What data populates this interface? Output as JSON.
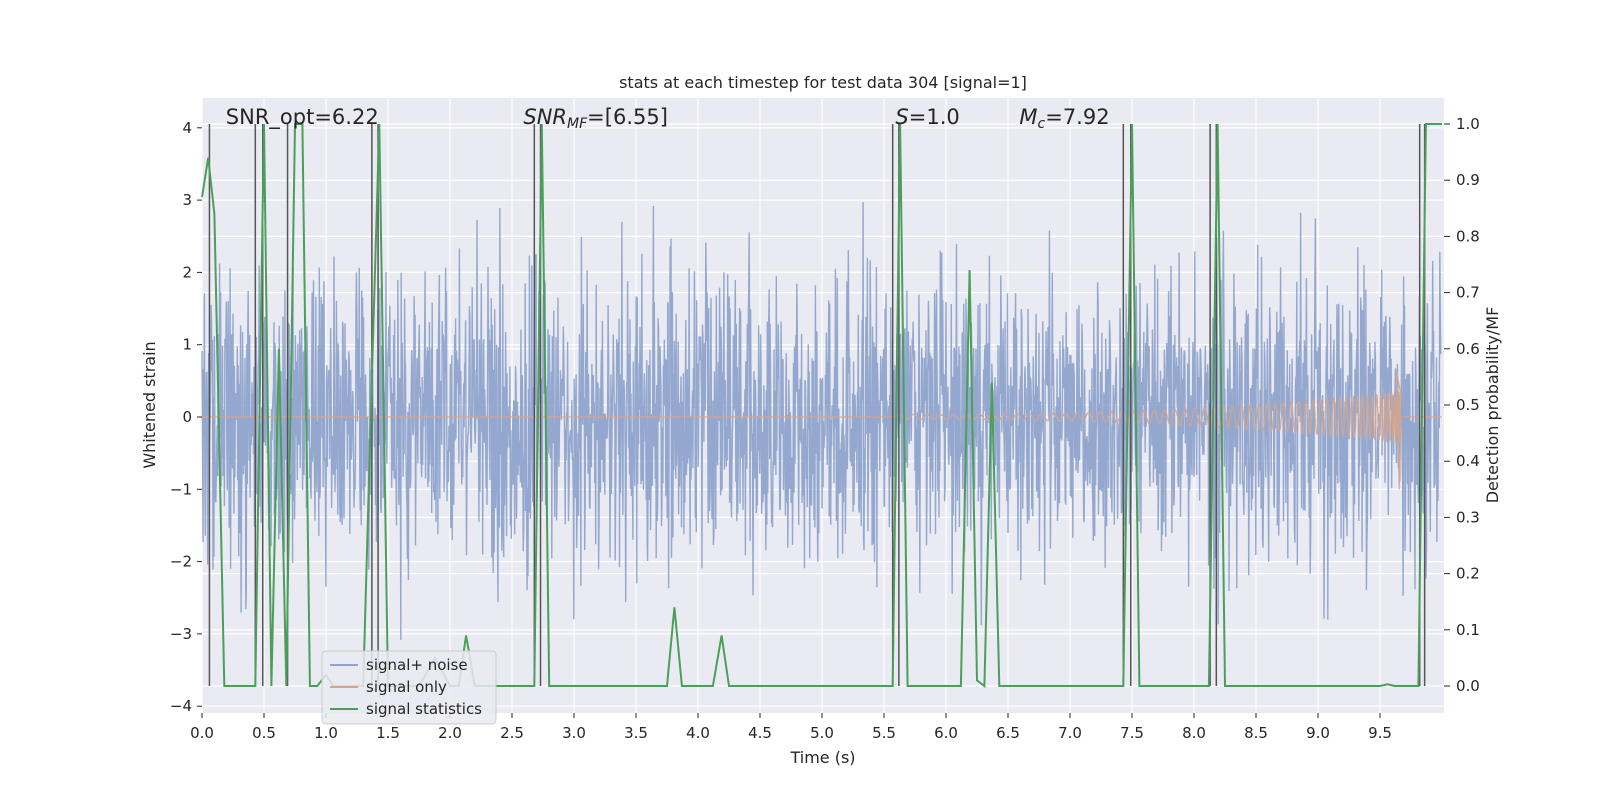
{
  "chart_data": {
    "type": "line",
    "title": "stats at each timestep for test data 304 [signal=1]",
    "xlabel": "Time (s)",
    "ylabel": "Whitened strain",
    "y2label": "Detection probability/MF",
    "xlim": [
      0,
      10
    ],
    "ylim": [
      -4.1,
      4.4
    ],
    "y2lim": [
      -0.02,
      1.02
    ],
    "xticks": [
      "0.0",
      "0.5",
      "1.0",
      "1.5",
      "2.0",
      "2.5",
      "3.0",
      "3.5",
      "4.0",
      "4.5",
      "5.0",
      "5.5",
      "6.0",
      "6.5",
      "7.0",
      "7.5",
      "8.0",
      "8.5",
      "9.0",
      "9.5"
    ],
    "yticks": [
      "4",
      "3",
      "2",
      "1",
      "0",
      "−1",
      "−2",
      "−3",
      "−4"
    ],
    "y2ticks": [
      "1.0",
      "0.9",
      "0.8",
      "0.7",
      "0.6",
      "0.5",
      "0.4",
      "0.3",
      "0.2",
      "0.1",
      "0.0"
    ],
    "grid": true,
    "legend_position": "lower-left",
    "annotations": [
      {
        "label": "SNR_opt=6.22",
        "x": 0.2
      },
      {
        "label": "SNR",
        "sub": "MF",
        "value": "=[6.55]",
        "x": 2.6
      },
      {
        "label": "S",
        "value": "=1.0",
        "x": 5.6
      },
      {
        "label": "M",
        "sub": "c",
        "value": "=7.92",
        "x": 6.6
      }
    ],
    "series": [
      {
        "name": "signal+ noise",
        "color": "#8fa4cc",
        "description": "whitened noisy strain, amplitude ~ ±1.5 to ±3, sampled densely over 0-10 s"
      },
      {
        "name": "signal only",
        "color": "#d6a48d",
        "chirp_start": 5.6,
        "chirp_end": 9.67,
        "peak_amplitude": 0.62,
        "trough_amplitude": -1.0
      },
      {
        "name": "signal statistics",
        "color": "#4c9e5b",
        "points": [
          [
            0.0,
            0.87
          ],
          [
            0.05,
            0.94
          ],
          [
            0.1,
            0.84
          ],
          [
            0.18,
            0.0
          ],
          [
            0.43,
            0.0
          ],
          [
            0.5,
            1.0
          ],
          [
            0.56,
            0.0
          ],
          [
            0.62,
            0.6
          ],
          [
            0.68,
            0.0
          ],
          [
            0.75,
            1.0
          ],
          [
            0.81,
            1.0
          ],
          [
            0.87,
            0.0
          ],
          [
            0.93,
            0.0
          ],
          [
            1.0,
            0.02
          ],
          [
            1.06,
            0.0
          ],
          [
            1.3,
            0.0
          ],
          [
            1.37,
            0.55
          ],
          [
            1.43,
            1.0
          ],
          [
            1.5,
            0.0
          ],
          [
            1.75,
            0.0
          ],
          [
            1.88,
            0.05
          ],
          [
            2.0,
            0.0
          ],
          [
            2.07,
            0.0
          ],
          [
            2.13,
            0.09
          ],
          [
            2.2,
            0.0
          ],
          [
            2.68,
            0.0
          ],
          [
            2.74,
            1.0
          ],
          [
            2.8,
            0.0
          ],
          [
            3.75,
            0.0
          ],
          [
            3.81,
            0.14
          ],
          [
            3.87,
            0.0
          ],
          [
            4.12,
            0.0
          ],
          [
            4.19,
            0.09
          ],
          [
            4.25,
            0.0
          ],
          [
            5.57,
            0.0
          ],
          [
            5.63,
            1.0
          ],
          [
            5.69,
            0.0
          ],
          [
            6.12,
            0.0
          ],
          [
            6.19,
            0.74
          ],
          [
            6.25,
            0.01
          ],
          [
            6.31,
            0.0
          ],
          [
            6.37,
            0.54
          ],
          [
            6.43,
            0.0
          ],
          [
            7.43,
            0.0
          ],
          [
            7.5,
            1.0
          ],
          [
            7.56,
            0.0
          ],
          [
            8.12,
            0.0
          ],
          [
            8.19,
            1.0
          ],
          [
            8.25,
            0.0
          ],
          [
            9.5,
            0.0
          ],
          [
            9.56,
            0.003
          ],
          [
            9.62,
            0.0
          ],
          [
            9.81,
            0.0
          ],
          [
            9.87,
            1.0
          ],
          [
            10.0,
            1.0
          ]
        ]
      },
      {
        "name": "",
        "color": "#555555",
        "type": "vertical-lines",
        "x": [
          0.06,
          0.43,
          0.49,
          0.69,
          1.37,
          1.42,
          2.68,
          2.73,
          5.57,
          5.62,
          7.43,
          7.49,
          8.13,
          8.18,
          9.82,
          9.86
        ]
      }
    ]
  }
}
